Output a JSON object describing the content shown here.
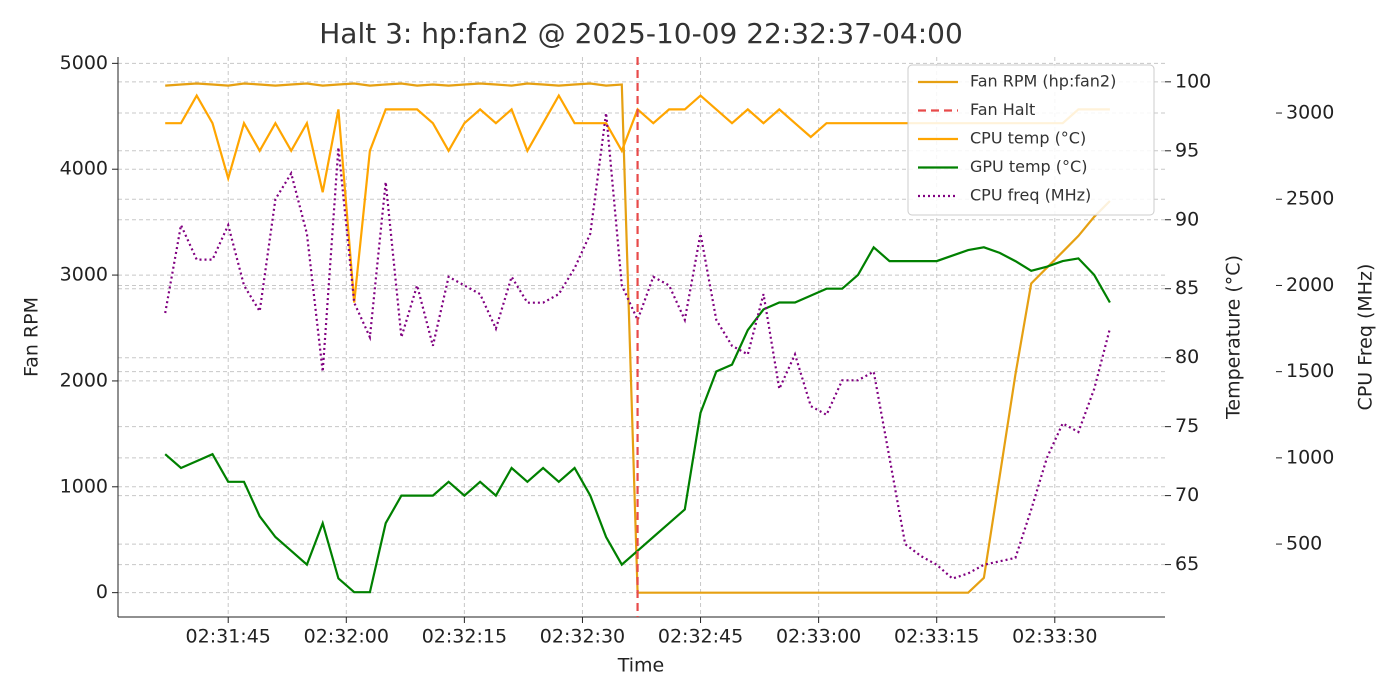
{
  "chart_data": {
    "type": "line",
    "title": "Halt 3: hp:fan2 @ 2025-10-09 22:32:37-04:00",
    "xlabel": "Time",
    "ylabel": "Fan RPM",
    "y2label": "Temperature (°C)",
    "y3label": "CPU Freq (MHz)",
    "x": [
      "02:31:37",
      "02:31:39",
      "02:31:41",
      "02:31:43",
      "02:31:45",
      "02:31:47",
      "02:31:49",
      "02:31:51",
      "02:31:53",
      "02:31:55",
      "02:31:57",
      "02:31:59",
      "02:32:01",
      "02:32:03",
      "02:32:05",
      "02:32:07",
      "02:32:09",
      "02:32:11",
      "02:32:13",
      "02:32:15",
      "02:32:17",
      "02:32:19",
      "02:32:21",
      "02:32:23",
      "02:32:25",
      "02:32:27",
      "02:32:29",
      "02:32:31",
      "02:32:33",
      "02:32:35",
      "02:32:37",
      "02:32:39",
      "02:32:41",
      "02:32:43",
      "02:32:45",
      "02:32:47",
      "02:32:49",
      "02:32:51",
      "02:32:53",
      "02:32:55",
      "02:32:57",
      "02:32:59",
      "02:33:01",
      "02:33:03",
      "02:33:05",
      "02:33:07",
      "02:33:09",
      "02:33:11",
      "02:33:13",
      "02:33:15",
      "02:33:17",
      "02:33:19",
      "02:33:21",
      "02:33:23",
      "02:33:25",
      "02:33:27",
      "02:33:29",
      "02:33:31",
      "02:33:33",
      "02:33:35",
      "02:33:37"
    ],
    "xlim": [
      "02:31:31",
      "02:33:44"
    ],
    "xticks": [
      "02:31:45",
      "02:32:00",
      "02:32:15",
      "02:32:30",
      "02:32:45",
      "02:33:00",
      "02:33:15",
      "02:33:30"
    ],
    "ylim": [
      -230,
      5060
    ],
    "yticks": [
      0,
      1000,
      2000,
      3000,
      4000,
      5000
    ],
    "y2lim": [
      61.2,
      101.8
    ],
    "y2ticks": [
      65,
      70,
      75,
      80,
      85,
      90,
      95,
      100
    ],
    "y3lim": [
      77,
      3325
    ],
    "y3ticks": [
      500,
      1000,
      1500,
      2000,
      2500,
      3000
    ],
    "grid": true,
    "series": [
      {
        "name": "Fan RPM (hp:fan2)",
        "color": "#e6a012",
        "axis": "y",
        "style": "solid",
        "values": [
          4790,
          4800,
          4810,
          4800,
          4790,
          4810,
          4800,
          4790,
          4800,
          4810,
          4790,
          4800,
          4810,
          4790,
          4800,
          4810,
          4790,
          4800,
          4790,
          4800,
          4810,
          4800,
          4790,
          4810,
          4800,
          4790,
          4800,
          4810,
          4790,
          4800,
          0,
          0,
          0,
          0,
          0,
          0,
          0,
          0,
          0,
          0,
          0,
          0,
          0,
          0,
          0,
          0,
          0,
          0,
          0,
          0,
          0,
          0,
          140,
          1100,
          2060,
          2920,
          3070,
          3220,
          3370,
          3550,
          3700
        ]
      },
      {
        "name": "CPU temp (°C)",
        "color": "#ffa500",
        "axis": "y2",
        "style": "solid",
        "values": [
          97,
          97,
          99,
          97,
          93,
          97,
          95,
          97,
          95,
          97,
          92,
          98,
          84,
          95,
          98,
          98,
          98,
          97,
          95,
          97,
          98,
          97,
          98,
          95,
          97,
          99,
          97,
          97,
          97,
          95,
          98,
          97,
          98,
          98,
          99,
          98,
          97,
          98,
          97,
          98,
          97,
          96,
          97,
          97,
          97,
          97,
          97,
          97,
          97,
          97,
          97,
          97,
          97,
          97,
          97,
          97,
          97,
          97,
          98,
          98,
          98
        ]
      },
      {
        "name": "GPU temp (°C)",
        "color": "#008000",
        "axis": "y2",
        "style": "solid",
        "values": [
          73,
          72,
          72.5,
          73,
          71,
          71,
          68.5,
          67,
          66,
          65,
          68,
          64,
          63,
          63,
          68,
          70,
          70,
          70,
          71,
          70,
          71,
          70,
          72,
          71,
          72,
          71,
          72,
          70,
          67,
          65,
          66,
          67,
          68,
          69,
          76,
          79,
          79.5,
          82,
          83.5,
          84,
          84,
          84.5,
          85,
          85,
          86,
          88,
          87,
          87,
          87,
          87,
          87.4,
          87.8,
          88,
          87.6,
          87,
          86.3,
          86.6,
          87,
          87.2,
          86,
          84
        ]
      },
      {
        "name": "CPU freq (MHz)",
        "color": "#800080",
        "axis": "y3",
        "style": "dotted",
        "values": [
          1840,
          2350,
          2150,
          2150,
          2350,
          2000,
          1850,
          2500,
          2650,
          2300,
          1500,
          2800,
          1900,
          1700,
          2600,
          1700,
          2000,
          1650,
          2050,
          2000,
          1950,
          1750,
          2050,
          1900,
          1900,
          1950,
          2100,
          2300,
          3000,
          2000,
          1800,
          2050,
          2000,
          1800,
          2300,
          1800,
          1650,
          1600,
          1950,
          1400,
          1600,
          1300,
          1250,
          1450,
          1450,
          1500,
          1000,
          500,
          430,
          380,
          300,
          330,
          380,
          400,
          420,
          700,
          1000,
          1200,
          1150,
          1400,
          1750
        ]
      }
    ],
    "vlines": [
      {
        "name": "Fan Halt",
        "x": "02:32:37",
        "color": "#e84a4a"
      }
    ]
  }
}
